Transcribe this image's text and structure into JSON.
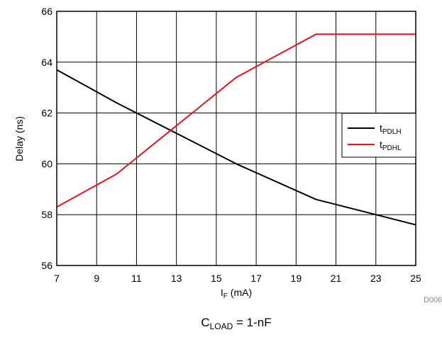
{
  "chart_data": {
    "type": "line",
    "xlabel": {
      "main": "I",
      "sub": "F",
      "rest": " (mA)"
    },
    "ylabel": "Delay (ns)",
    "xlim": [
      7,
      25
    ],
    "ylim": [
      56,
      66
    ],
    "xticks": [
      7,
      9,
      11,
      13,
      15,
      17,
      19,
      21,
      23,
      25
    ],
    "yticks": [
      56,
      58,
      60,
      62,
      64,
      66
    ],
    "grid": true,
    "legend_position": "right",
    "series": [
      {
        "name": "tPDLH",
        "name_main": "t",
        "name_sub": "PDLH",
        "color": "#000000",
        "points": [
          [
            7,
            63.7
          ],
          [
            10,
            62.4
          ],
          [
            13,
            61.2
          ],
          [
            16,
            60.0
          ],
          [
            20,
            58.6
          ],
          [
            25,
            57.6
          ]
        ]
      },
      {
        "name": "tPDHL",
        "name_main": "t",
        "name_sub": "PDHL",
        "color": "#e8141b",
        "points": [
          [
            7,
            58.3
          ],
          [
            10,
            59.6
          ],
          [
            13,
            61.5
          ],
          [
            16,
            63.4
          ],
          [
            20,
            65.1
          ],
          [
            25,
            65.1
          ]
        ]
      }
    ],
    "caption": {
      "main": "C",
      "sub": "LOAD",
      "rest": " = 1-nF"
    },
    "figure_code": "D006"
  }
}
